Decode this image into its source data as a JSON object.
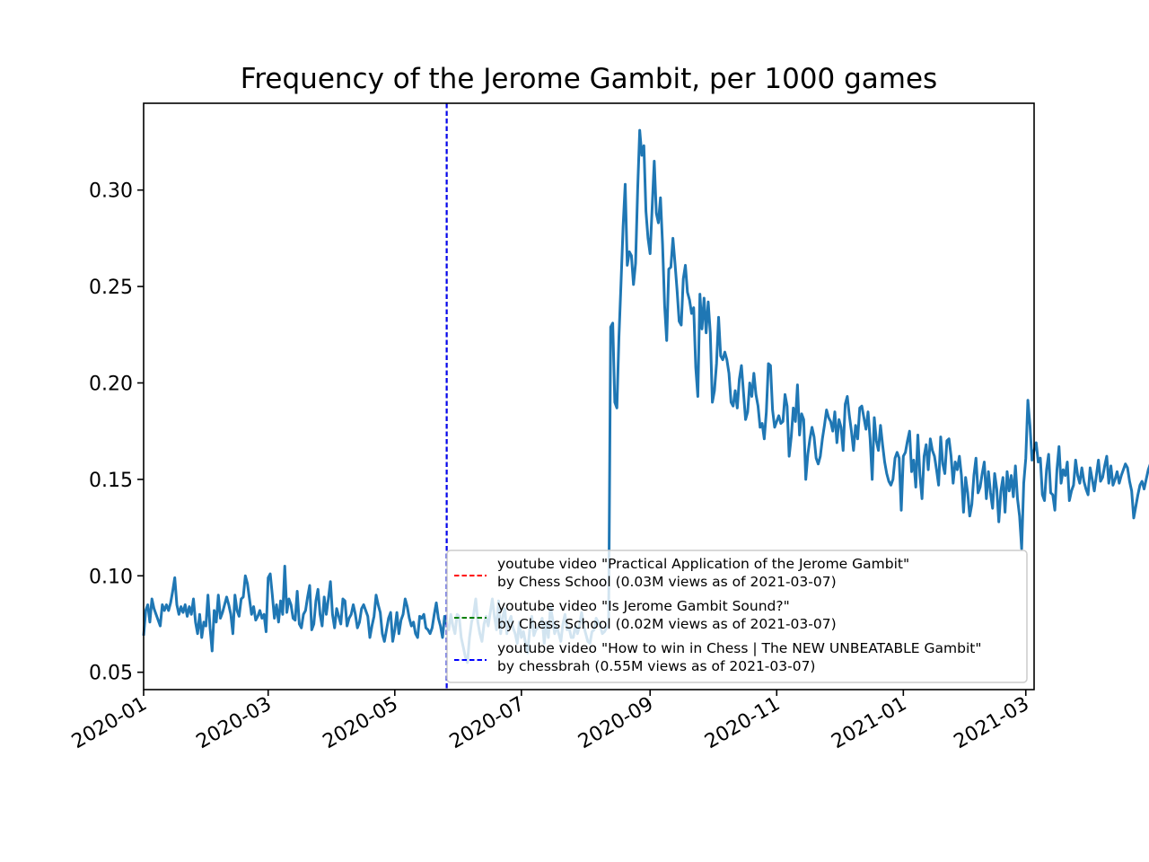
{
  "chart_data": {
    "type": "line",
    "title": "Frequency of the Jerome Gambit, per 1000 games",
    "xlabel": "",
    "ylabel": "",
    "xlim": [
      "2020-01-01",
      "2021-03-05"
    ],
    "ylim": [
      0.041,
      0.345
    ],
    "x_ticks": [
      "2020-01",
      "2020-03",
      "2020-05",
      "2020-07",
      "2020-09",
      "2020-11",
      "2021-01",
      "2021-03"
    ],
    "y_ticks": [
      "0.05",
      "0.10",
      "0.15",
      "0.20",
      "0.25",
      "0.30"
    ],
    "y_tick_values": [
      0.05,
      0.1,
      0.15,
      0.2,
      0.25,
      0.3
    ],
    "grid": false,
    "legend_placement": "lower right",
    "series": [
      {
        "color": "#1f77b4",
        "x_start": "2020-01-01",
        "x_step": "1 day",
        "values": [
          0.069,
          0.082,
          0.085,
          0.076,
          0.088,
          0.083,
          0.08,
          0.077,
          0.074,
          0.085,
          0.082,
          0.085,
          0.082,
          0.086,
          0.092,
          0.099,
          0.085,
          0.08,
          0.084,
          0.081,
          0.085,
          0.079,
          0.084,
          0.08,
          0.088,
          0.076,
          0.07,
          0.08,
          0.068,
          0.076,
          0.074,
          0.09,
          0.073,
          0.061,
          0.082,
          0.076,
          0.09,
          0.078,
          0.081,
          0.085,
          0.089,
          0.085,
          0.08,
          0.07,
          0.09,
          0.082,
          0.079,
          0.088,
          0.089,
          0.1,
          0.096,
          0.088,
          0.08,
          0.084,
          0.077,
          0.079,
          0.082,
          0.078,
          0.08,
          0.071,
          0.099,
          0.101,
          0.09,
          0.078,
          0.085,
          0.076,
          0.087,
          0.08,
          0.105,
          0.081,
          0.088,
          0.085,
          0.078,
          0.077,
          0.092,
          0.075,
          0.073,
          0.08,
          0.082,
          0.089,
          0.095,
          0.072,
          0.075,
          0.087,
          0.093,
          0.08,
          0.074,
          0.089,
          0.08,
          0.088,
          0.097,
          0.08,
          0.073,
          0.083,
          0.079,
          0.075,
          0.088,
          0.087,
          0.074,
          0.078,
          0.08,
          0.085,
          0.08,
          0.073,
          0.076,
          0.083,
          0.085,
          0.082,
          0.079,
          0.068,
          0.074,
          0.079,
          0.09,
          0.085,
          0.081,
          0.07,
          0.066,
          0.072,
          0.078,
          0.081,
          0.066,
          0.072,
          0.081,
          0.07,
          0.077,
          0.08,
          0.088,
          0.084,
          0.078,
          0.074,
          0.076,
          0.07,
          0.068,
          0.079,
          0.078,
          0.08,
          0.073,
          0.072,
          0.07,
          0.073,
          0.08,
          0.086,
          0.078,
          0.074,
          0.068,
          0.079,
          0.075,
          0.072,
          0.08,
          0.074,
          0.07,
          0.08,
          0.079,
          0.068,
          0.063,
          0.058,
          0.055,
          0.068,
          0.076,
          0.08,
          0.088,
          0.076,
          0.07,
          0.066,
          0.075,
          0.079,
          0.074,
          0.081,
          0.088,
          0.079,
          0.072,
          0.087,
          0.07,
          0.079,
          0.083,
          0.07,
          0.076,
          0.079,
          0.073,
          0.07,
          0.065,
          0.076,
          0.068,
          0.071,
          0.065,
          0.06,
          0.072,
          0.079,
          0.069,
          0.072,
          0.073,
          0.075,
          0.078,
          0.065,
          0.076,
          0.068,
          0.084,
          0.078,
          0.07,
          0.074,
          0.07,
          0.066,
          0.075,
          0.08,
          0.072,
          0.073,
          0.068,
          0.068,
          0.074,
          0.07,
          0.074,
          0.081,
          0.074,
          0.07,
          0.066,
          0.065,
          0.071,
          0.072,
          0.078,
          0.076,
          0.074,
          0.07,
          0.071,
          0.073,
          0.074,
          0.229,
          0.231,
          0.19,
          0.187,
          0.224,
          0.252,
          0.281,
          0.303,
          0.261,
          0.268,
          0.266,
          0.251,
          0.262,
          0.3,
          0.331,
          0.318,
          0.323,
          0.289,
          0.275,
          0.267,
          0.291,
          0.315,
          0.288,
          0.283,
          0.296,
          0.272,
          0.24,
          0.222,
          0.259,
          0.26,
          0.275,
          0.262,
          0.248,
          0.232,
          0.23,
          0.254,
          0.261,
          0.247,
          0.243,
          0.236,
          0.239,
          0.208,
          0.193,
          0.246,
          0.228,
          0.244,
          0.226,
          0.242,
          0.226,
          0.19,
          0.196,
          0.21,
          0.234,
          0.214,
          0.212,
          0.216,
          0.212,
          0.205,
          0.19,
          0.188,
          0.196,
          0.187,
          0.202,
          0.209,
          0.195,
          0.181,
          0.185,
          0.2,
          0.193,
          0.205,
          0.194,
          0.188,
          0.177,
          0.179,
          0.171,
          0.185,
          0.21,
          0.209,
          0.186,
          0.177,
          0.18,
          0.183,
          0.179,
          0.18,
          0.194,
          0.188,
          0.162,
          0.172,
          0.187,
          0.18,
          0.199,
          0.173,
          0.184,
          0.181,
          0.15,
          0.163,
          0.171,
          0.177,
          0.172,
          0.161,
          0.158,
          0.162,
          0.171,
          0.178,
          0.186,
          0.182,
          0.18,
          0.175,
          0.185,
          0.169,
          0.181,
          0.177,
          0.165,
          0.189,
          0.193,
          0.183,
          0.175,
          0.165,
          0.178,
          0.171,
          0.187,
          0.188,
          0.182,
          0.176,
          0.185,
          0.171,
          0.15,
          0.182,
          0.17,
          0.165,
          0.178,
          0.168,
          0.159,
          0.153,
          0.149,
          0.147,
          0.15,
          0.161,
          0.164,
          0.161,
          0.134,
          0.162,
          0.164,
          0.17,
          0.175,
          0.154,
          0.16,
          0.146,
          0.173,
          0.152,
          0.14,
          0.162,
          0.168,
          0.155,
          0.171,
          0.165,
          0.162,
          0.155,
          0.147,
          0.172,
          0.158,
          0.153,
          0.17,
          0.171,
          0.162,
          0.148,
          0.159,
          0.155,
          0.162,
          0.152,
          0.133,
          0.151,
          0.143,
          0.131,
          0.137,
          0.152,
          0.161,
          0.143,
          0.146,
          0.153,
          0.159,
          0.14,
          0.154,
          0.143,
          0.135,
          0.153,
          0.145,
          0.128,
          0.144,
          0.151,
          0.133,
          0.154,
          0.144,
          0.152,
          0.141,
          0.157,
          0.14,
          0.131,
          0.114,
          0.148,
          0.161,
          0.191,
          0.178,
          0.16,
          0.165,
          0.169,
          0.159,
          0.161,
          0.142,
          0.139,
          0.155,
          0.163,
          0.143,
          0.142,
          0.134,
          0.155,
          0.167,
          0.148,
          0.155,
          0.152,
          0.159,
          0.139,
          0.144,
          0.147,
          0.16,
          0.152,
          0.148,
          0.156,
          0.149,
          0.145,
          0.142,
          0.156,
          0.15,
          0.144,
          0.152,
          0.16,
          0.149,
          0.151,
          0.157,
          0.162,
          0.148,
          0.157,
          0.147,
          0.15,
          0.154,
          0.148,
          0.152,
          0.155,
          0.158,
          0.156,
          0.149,
          0.144,
          0.13,
          0.136,
          0.142,
          0.147,
          0.149,
          0.145,
          0.15,
          0.155,
          0.158,
          0.153,
          0.141,
          0.156,
          0.147,
          0.129,
          0.15,
          0.156,
          0.14,
          0.145,
          0.143,
          0.152,
          0.155,
          0.16,
          0.147,
          0.142,
          0.138,
          0.148,
          0.155,
          0.151,
          0.147,
          0.158,
          0.164,
          0.14,
          0.153,
          0.146,
          0.138,
          0.14,
          0.145,
          0.146,
          0.135,
          0.143,
          0.151,
          0.157,
          0.148,
          0.142,
          0.158,
          0.152,
          0.137,
          0.134,
          0.141,
          0.148,
          0.143,
          0.136,
          0.146,
          0.16,
          0.12,
          0.131,
          0.136,
          0.14,
          0.138,
          0.13,
          0.136,
          0.13,
          0.139,
          0.145,
          0.134,
          0.131,
          0.156,
          0.152,
          0.149,
          0.155,
          0.157,
          0.159,
          0.159,
          0.158
        ]
      }
    ],
    "vlines": [
      {
        "x": "2020-05-26",
        "color": "#ff0000",
        "style": "dashed"
      },
      {
        "x": "2020-05-26",
        "color": "#008000",
        "style": "dashed"
      },
      {
        "x": "2020-05-26",
        "color": "#0000ff",
        "style": "dashed"
      }
    ],
    "legend": [
      {
        "color": "#ff0000",
        "line1": "youtube video \"Practical Application of the Jerome Gambit\"",
        "line2": "by Chess School (0.03M views as of 2021-03-07)"
      },
      {
        "color": "#008000",
        "line1": "youtube video \"Is Jerome Gambit Sound?\"",
        "line2": "by Chess School (0.02M views as of 2021-03-07)"
      },
      {
        "color": "#0000ff",
        "line1": "youtube video \"How to win in Chess | The NEW UNBEATABLE Gambit\"",
        "line2": "by chessbrah (0.55M views as of 2021-03-07)"
      }
    ]
  }
}
